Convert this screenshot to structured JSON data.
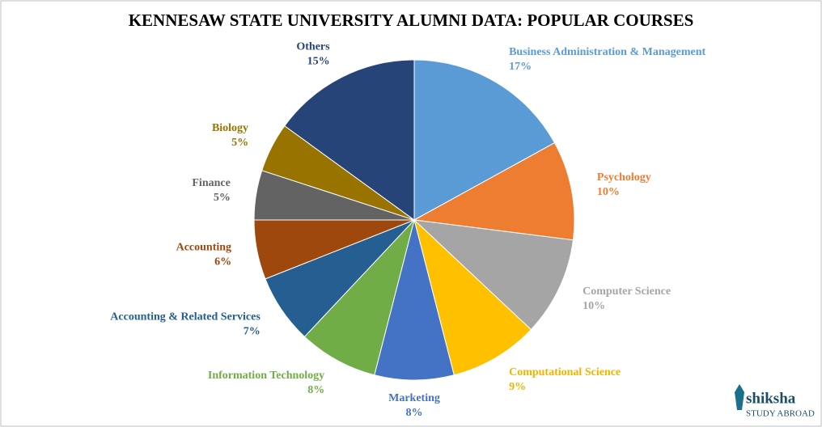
{
  "chart_data": {
    "type": "pie",
    "title": "KENNESAW STATE UNIVERSITY ALUMNI DATA: POPULAR COURSES",
    "categories": [
      "Business Administration & Management",
      "Psychology",
      "Computer Science",
      "Computational Science",
      "Marketing",
      "Information Technology",
      "Accounting & Related Services",
      "Accounting",
      "Finance",
      "Biology",
      "Others"
    ],
    "values": [
      17,
      10,
      10,
      9,
      8,
      8,
      7,
      6,
      5,
      5,
      15
    ],
    "value_labels": [
      "17%",
      "10%",
      "10%",
      "9%",
      "8%",
      "8%",
      "7%",
      "6%",
      "5%",
      "5%",
      "15%"
    ],
    "colors": [
      "#5b9bd5",
      "#ed7d31",
      "#a5a5a5",
      "#ffc000",
      "#4472c4",
      "#70ad47",
      "#255e91",
      "#9e480e",
      "#636363",
      "#997300",
      "#264478"
    ]
  },
  "logo": {
    "brand": "shiksha",
    "tagline": "STUDY ABROAD"
  }
}
